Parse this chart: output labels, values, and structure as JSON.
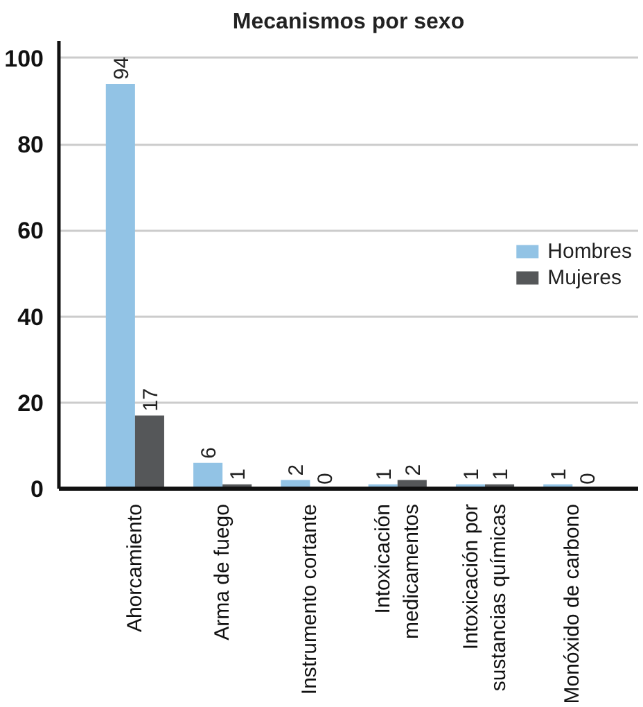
{
  "chart_data": {
    "type": "bar",
    "title": "Mecanismos por sexo",
    "categories": [
      "Ahorcamiento",
      "Arma de fuego",
      "Instrumento cortante",
      "Intoxicación\nmedicamentos",
      "Intoxicación por\nsustancias químicas",
      "Monóxido de carbono"
    ],
    "series": [
      {
        "name": "Hombres",
        "color": "#92c3e5",
        "values": [
          94,
          6,
          2,
          1,
          1,
          1
        ]
      },
      {
        "name": "Mujeres",
        "color": "#555759",
        "values": [
          17,
          1,
          0,
          2,
          1,
          0
        ]
      }
    ],
    "ylim": [
      0,
      104
    ],
    "yticks": [
      0,
      20,
      40,
      60,
      80,
      100
    ],
    "grid": "y",
    "legend": "right",
    "data_labels": true
  }
}
